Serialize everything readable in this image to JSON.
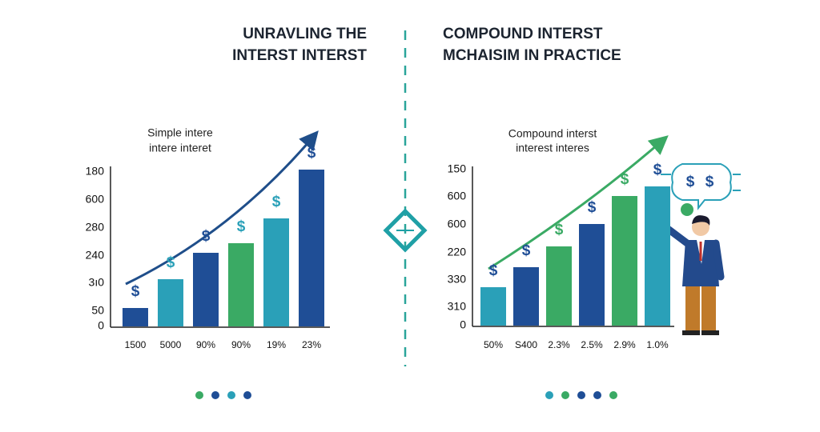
{
  "left": {
    "title": [
      "UNRAVLING THE",
      "INTERST INTERST"
    ],
    "subtitle": [
      "Simple intere",
      "intere interet"
    ],
    "y_labels": [
      "180",
      "600",
      "280",
      "240",
      "3ı0",
      "50",
      "0"
    ],
    "x_labels": [
      "1500",
      "5000",
      "90%",
      "90%",
      "19%",
      "23%"
    ]
  },
  "right": {
    "title": [
      "COMPOUND INTERST",
      "MCHAISIM IN PRACTICE"
    ],
    "subtitle": [
      "Compound interst",
      "interest interes"
    ],
    "y_labels": [
      "150",
      "600",
      "600",
      "220",
      "330",
      "310",
      "0"
    ],
    "x_labels": [
      "50%",
      "S400",
      "2.3%",
      "2.5%",
      "2.9%",
      "1.0%"
    ]
  },
  "symbol": "$"
}
